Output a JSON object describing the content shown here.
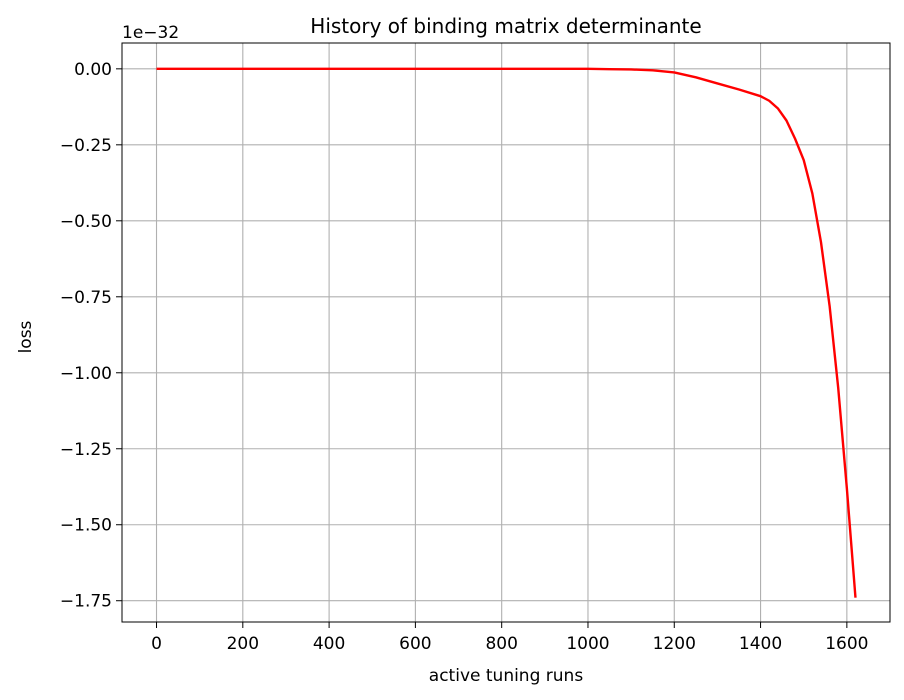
{
  "chart_data": {
    "type": "line",
    "title": "History of binding matrix determinante",
    "xlabel": "active tuning runs",
    "ylabel": "loss",
    "offset_text": "1e−32",
    "x_ticks": [
      0,
      200,
      400,
      600,
      800,
      1000,
      1200,
      1400,
      1600
    ],
    "x_tick_labels": [
      "0",
      "200",
      "400",
      "600",
      "800",
      "1000",
      "1200",
      "1400",
      "1600"
    ],
    "y_ticks": [
      0.0,
      -0.25,
      -0.5,
      -0.75,
      -1.0,
      -1.25,
      -1.5,
      -1.75
    ],
    "y_tick_labels": [
      "0.00",
      "−0.25",
      "−0.50",
      "−0.75",
      "−1.00",
      "−1.25",
      "−1.50",
      "−1.75"
    ],
    "xlim": [
      -80,
      1700
    ],
    "ylim": [
      -1.82,
      0.085
    ],
    "grid": true,
    "series": [
      {
        "color": "#ff0000",
        "x": [
          0,
          200,
          400,
          600,
          800,
          1000,
          1050,
          1100,
          1150,
          1200,
          1250,
          1300,
          1350,
          1400,
          1420,
          1440,
          1460,
          1480,
          1500,
          1520,
          1540,
          1560,
          1580,
          1600,
          1610,
          1620
        ],
        "y": [
          0.0,
          0.0,
          0.0,
          0.0,
          0.0,
          0.0,
          -0.001,
          -0.002,
          -0.005,
          -0.012,
          -0.028,
          -0.048,
          -0.068,
          -0.09,
          -0.105,
          -0.13,
          -0.17,
          -0.23,
          -0.3,
          -0.41,
          -0.57,
          -0.78,
          -1.05,
          -1.38,
          -1.56,
          -1.74
        ]
      }
    ]
  }
}
